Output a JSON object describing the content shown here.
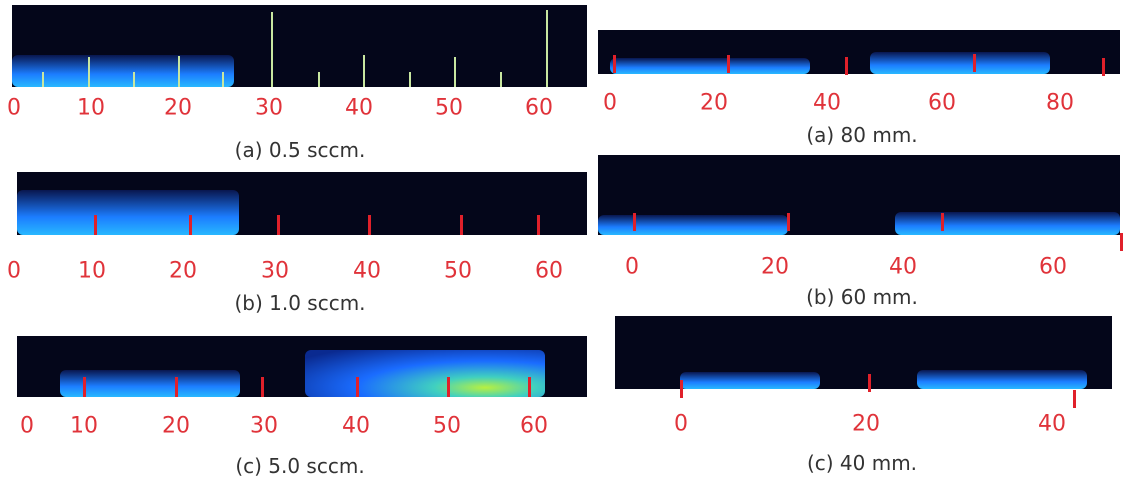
{
  "panels": [
    {
      "caption": "(a) 0.5 sccm.",
      "scale_labels": [
        "0",
        "10",
        "20",
        "30",
        "40",
        "50",
        "60"
      ]
    },
    {
      "caption": "(b) 1.0 sccm.",
      "scale_labels": [
        "0",
        "10",
        "20",
        "30",
        "40",
        "50",
        "60"
      ]
    },
    {
      "caption": "(c) 5.0 sccm.",
      "scale_labels": [
        "0",
        "10",
        "20",
        "30",
        "40",
        "50",
        "60"
      ]
    },
    {
      "caption": "(a) 80 mm.",
      "scale_labels": [
        "0",
        "20",
        "40",
        "60",
        "80"
      ]
    },
    {
      "caption": "(b) 60 mm.",
      "scale_labels": [
        "0",
        "20",
        "40",
        "60"
      ]
    },
    {
      "caption": "(c) 40 mm.",
      "scale_labels": [
        "0",
        "20",
        "40"
      ]
    }
  ]
}
